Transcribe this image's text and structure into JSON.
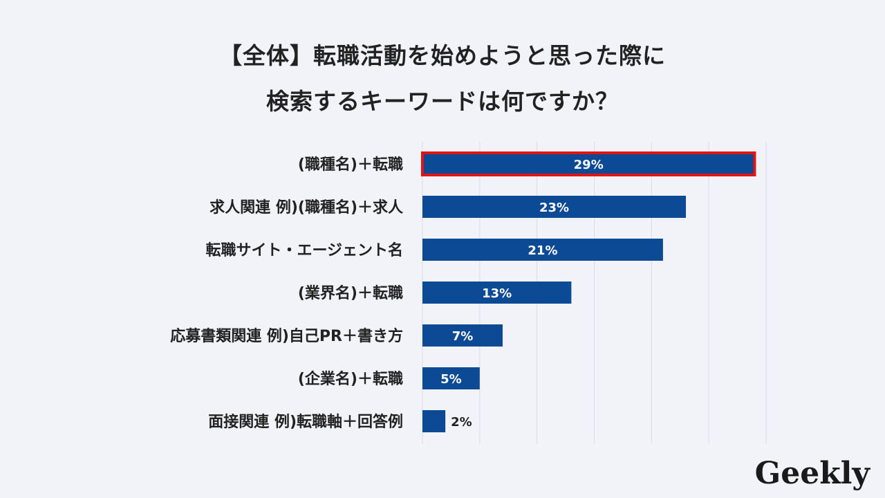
{
  "page": {
    "title_line1": "【全体】転職活動を始めようと思った際に",
    "title_line2": "検索するキーワードは何ですか？",
    "logo_text": "Geekly"
  },
  "colors": {
    "background": "#f1f3f8",
    "bar": "#0c4a96",
    "highlight_border": "#e01414",
    "grid": "#d8dbe3",
    "label_text": "#222222"
  },
  "chart_data": {
    "type": "bar",
    "orientation": "horizontal",
    "title": "【全体】転職活動を始めようと思った際に 検索するキーワードは何ですか？",
    "categories": [
      "(職種名)＋転職",
      "求人関連 例)(職種名)＋求人",
      "転職サイト・エージェント名",
      "(業界名)＋転職",
      "応募書類関連 例)自己PR＋書き方",
      "(企業名)＋転職",
      "面接関連 例)転職軸＋回答例"
    ],
    "values": [
      29,
      23,
      21,
      13,
      7,
      5,
      2
    ],
    "value_labels": [
      "29%",
      "23%",
      "21%",
      "13%",
      "7%",
      "5%",
      "2%"
    ],
    "unit": "%",
    "xlim": [
      0,
      30
    ],
    "grid": true,
    "highlighted_index": 0
  }
}
